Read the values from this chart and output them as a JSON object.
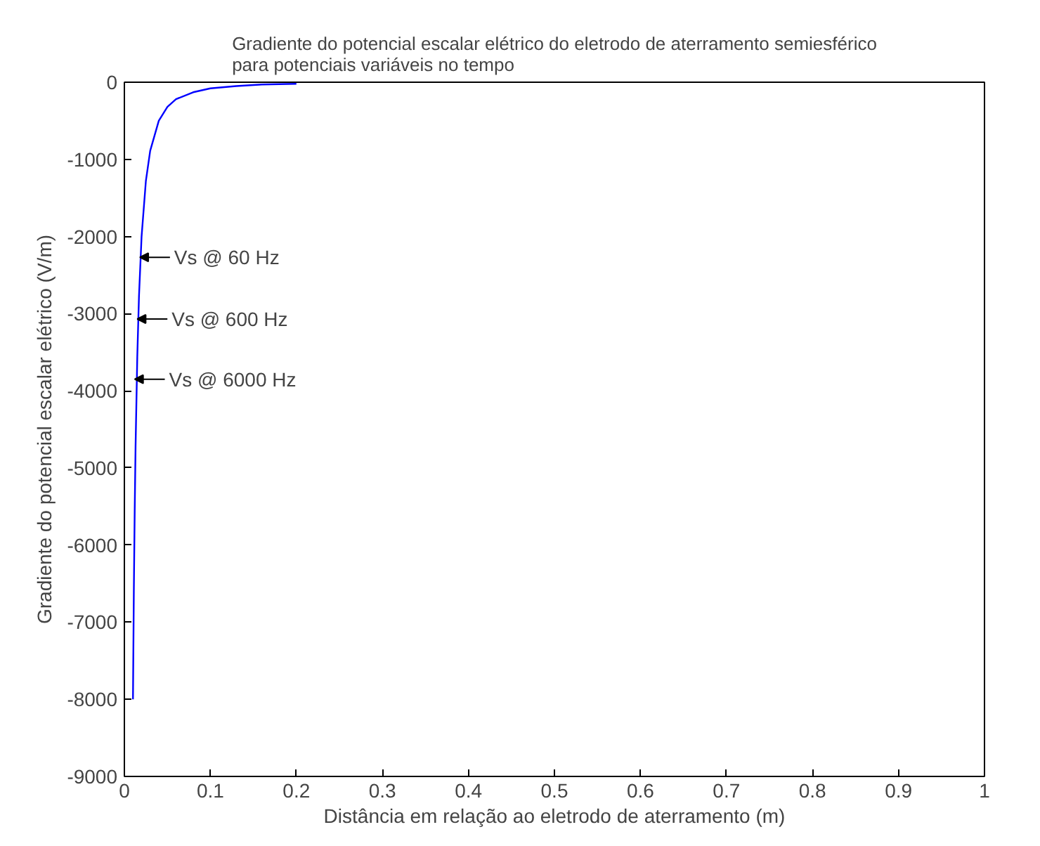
{
  "chart_data": {
    "type": "line",
    "title": "Gradiente do potencial escalar elétrico do eletrodo de aterramento semiesférico\n para potenciais variáveis no tempo",
    "xlabel": "Distância em relação ao eletrodo de aterramento (m)",
    "ylabel": "Gradiente do potencial escalar elétrico (V/m)",
    "series": [
      {
        "color": "#0000ff",
        "x": [
          0.01,
          0.01,
          0.011,
          0.012,
          0.013,
          0.015,
          0.017,
          0.02,
          0.025,
          0.03,
          0.04,
          0.05,
          0.06,
          0.08,
          0.1,
          0.13,
          0.16,
          0.2
        ],
        "values": [
          -8000,
          -8000,
          -6600,
          -5560,
          -4730,
          -3560,
          -2770,
          -2000,
          -1280,
          -890,
          -500,
          -320,
          -220,
          -130,
          -80,
          -50,
          -30,
          -20
        ]
      }
    ],
    "annotations": [
      {
        "text": "Vs @ 60 Hz",
        "x": 0.018,
        "y": -2270
      },
      {
        "text": "Vs @ 600 Hz",
        "x": 0.015,
        "y": -3070
      },
      {
        "text": "Vs @ 6000 Hz",
        "x": 0.012,
        "y": -3850
      }
    ],
    "xlim": [
      0,
      1
    ],
    "xticks": [
      0,
      0.1,
      0.2,
      0.3,
      0.4,
      0.5,
      0.6,
      0.7,
      0.8,
      0.9,
      1
    ],
    "ylim": [
      -9000,
      0
    ],
    "yticks": [
      -9000,
      -8000,
      -7000,
      -6000,
      -5000,
      -4000,
      -3000,
      -2000,
      -1000,
      0
    ],
    "grid": false,
    "marker": "none",
    "line_style": "solid"
  }
}
